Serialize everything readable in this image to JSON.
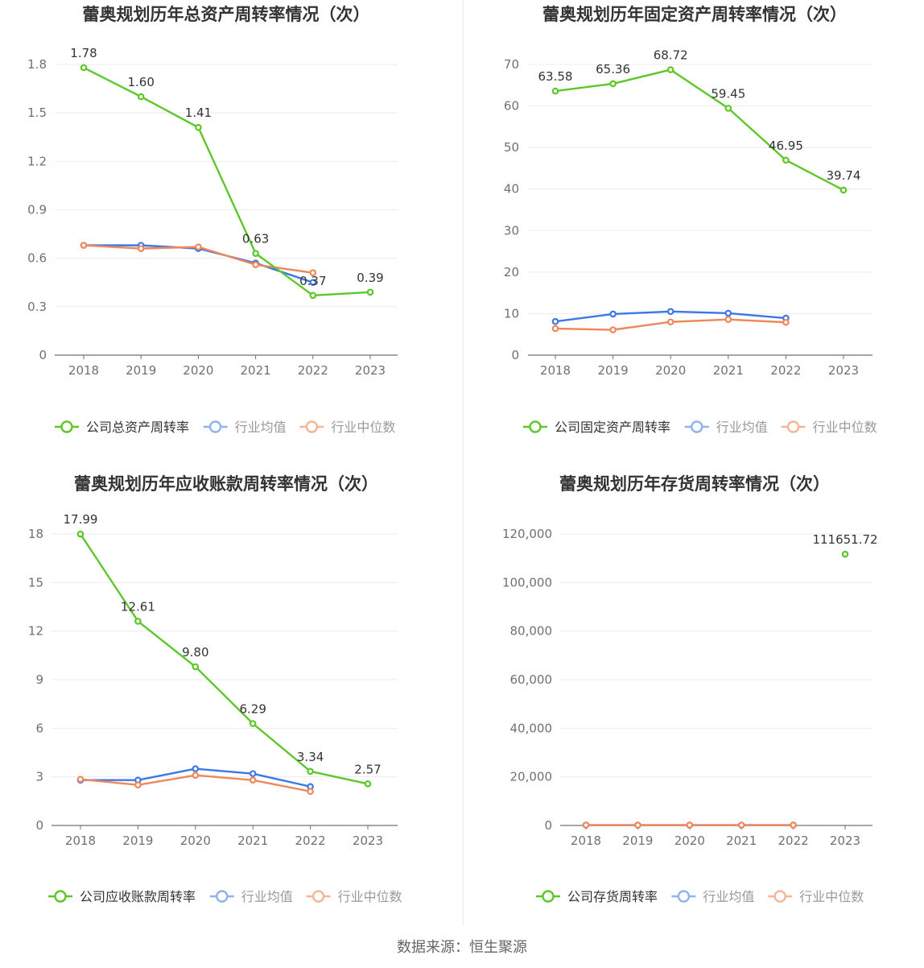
{
  "source": "数据来源：恒生聚源",
  "colors": {
    "company": "#5dc729",
    "average": "#3d77e6",
    "median": "#f0875a",
    "grid": "#e8ebf3",
    "axis": "#6e7079"
  },
  "chart_data": [
    {
      "type": "line",
      "title": "蕾奥规划历年总资产周转率情况（次）",
      "categories": [
        "2018",
        "2019",
        "2020",
        "2021",
        "2022",
        "2023"
      ],
      "yticks": [
        "0",
        "0.3",
        "0.6",
        "0.9",
        "1.2",
        "1.5",
        "1.8"
      ],
      "ylim": [
        0,
        1.8
      ],
      "series": [
        {
          "name": "公司总资产周转率",
          "role": "company",
          "values": [
            1.78,
            1.6,
            1.41,
            0.63,
            0.37,
            0.39
          ],
          "labels": [
            "1.78",
            "1.60",
            "1.41",
            "0.63",
            "0.37",
            "0.39"
          ]
        },
        {
          "name": "行业均值",
          "role": "average",
          "values": [
            0.68,
            0.68,
            0.66,
            0.57,
            0.45,
            null
          ]
        },
        {
          "name": "行业中位数",
          "role": "median",
          "values": [
            0.68,
            0.66,
            0.67,
            0.56,
            0.51,
            null
          ]
        }
      ]
    },
    {
      "type": "line",
      "title": "蕾奥规划历年固定资产周转率情况（次）",
      "categories": [
        "2018",
        "2019",
        "2020",
        "2021",
        "2022",
        "2023"
      ],
      "yticks": [
        "0",
        "10",
        "20",
        "30",
        "40",
        "50",
        "60",
        "70"
      ],
      "ylim": [
        0,
        70
      ],
      "series": [
        {
          "name": "公司固定资产周转率",
          "role": "company",
          "values": [
            63.58,
            65.36,
            68.72,
            59.45,
            46.95,
            39.74
          ],
          "labels": [
            "63.58",
            "65.36",
            "68.72",
            "59.45",
            "46.95",
            "39.74"
          ]
        },
        {
          "name": "行业均值",
          "role": "average",
          "values": [
            8.1,
            9.9,
            10.5,
            10.1,
            8.9,
            null
          ]
        },
        {
          "name": "行业中位数",
          "role": "median",
          "values": [
            6.4,
            6.1,
            8.0,
            8.6,
            7.9,
            null
          ]
        }
      ]
    },
    {
      "type": "line",
      "title": "蕾奥规划历年应收账款周转率情况（次）",
      "categories": [
        "2018",
        "2019",
        "2020",
        "2021",
        "2022",
        "2023"
      ],
      "yticks": [
        "0",
        "3",
        "6",
        "9",
        "12",
        "15",
        "18"
      ],
      "ylim": [
        0,
        18
      ],
      "series": [
        {
          "name": "公司应收账款周转率",
          "role": "company",
          "values": [
            17.99,
            12.61,
            9.8,
            6.29,
            3.34,
            2.57
          ],
          "labels": [
            "17.99",
            "12.61",
            "9.80",
            "6.29",
            "3.34",
            "2.57"
          ]
        },
        {
          "name": "行业均值",
          "role": "average",
          "values": [
            2.8,
            2.8,
            3.5,
            3.2,
            2.4,
            null
          ]
        },
        {
          "name": "行业中位数",
          "role": "median",
          "values": [
            2.85,
            2.5,
            3.1,
            2.8,
            2.1,
            null
          ]
        }
      ]
    },
    {
      "type": "line",
      "title": "蕾奥规划历年存货周转率情况（次）",
      "categories": [
        "2018",
        "2019",
        "2020",
        "2021",
        "2022",
        "2023"
      ],
      "yticks": [
        "0",
        "20,000",
        "40,000",
        "60,000",
        "80,000",
        "100,000",
        "120,000"
      ],
      "ylim": [
        0,
        120000
      ],
      "series": [
        {
          "name": "公司存货周转率",
          "role": "company",
          "values": [
            null,
            null,
            null,
            null,
            null,
            111651.72
          ],
          "labels": [
            "",
            "",
            "",
            "",
            "",
            "111651.72"
          ]
        },
        {
          "name": "行业均值",
          "role": "average",
          "values": [
            150,
            150,
            150,
            150,
            150,
            null
          ]
        },
        {
          "name": "行业中位数",
          "role": "median",
          "values": [
            150,
            150,
            150,
            150,
            150,
            null
          ]
        }
      ]
    }
  ]
}
